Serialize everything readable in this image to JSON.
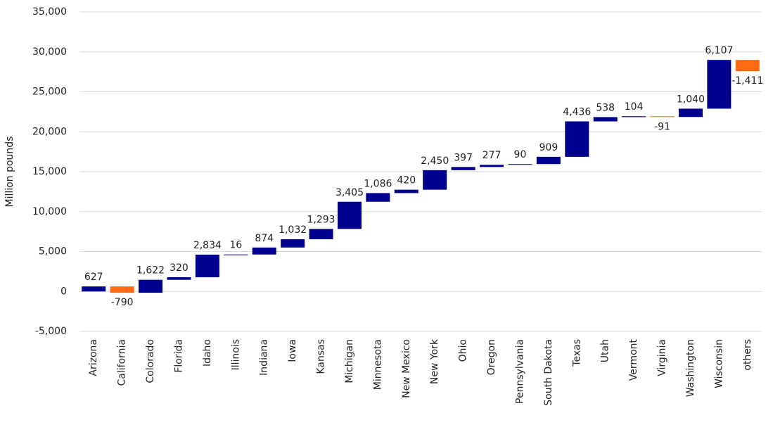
{
  "chart_data": {
    "type": "waterfall",
    "y_label": "Million pounds",
    "categories": [
      "Arizona",
      "California",
      "Colorado",
      "Florida",
      "Idaho",
      "Illinois",
      "Indiana",
      "Iowa",
      "Kansas",
      "Michigan",
      "Minnesota",
      "New Mexico",
      "New York",
      "Ohio",
      "Oregon",
      "Pennsylvania",
      "South Dakota",
      "Texas",
      "Utah",
      "Vermont",
      "Virginia",
      "Washington",
      "Wisconsin",
      "others"
    ],
    "values": [
      627,
      -790,
      1622,
      320,
      2834,
      16,
      874,
      1032,
      1293,
      3405,
      1086,
      420,
      2450,
      397,
      277,
      90,
      909,
      4436,
      538,
      104,
      -91,
      1040,
      6107,
      -1411
    ],
    "value_labels": [
      "627",
      "-790",
      "1,622",
      "320",
      "2,834",
      "16",
      "874",
      "1,032",
      "1,293",
      "3,405",
      "1,086",
      "420",
      "2,450",
      "397",
      "277",
      "90",
      "909",
      "4,436",
      "538",
      "104",
      "-91",
      "1,040",
      "6,107",
      "-1,411"
    ],
    "increase_color": "#00008f",
    "decrease_color": "#ff6a13",
    "ylim": [
      -5000,
      35000
    ],
    "yticks": [
      {
        "value": -5000,
        "label": "-5,000"
      },
      0,
      {
        "value": 5000,
        "label": "5,000"
      },
      {
        "value": 10000,
        "label": "10,000"
      },
      {
        "value": 15000,
        "label": "15,000"
      },
      {
        "value": 20000,
        "label": "20,000"
      },
      {
        "value": 25000,
        "label": "25,000"
      },
      {
        "value": 30000,
        "label": "30,000"
      },
      {
        "value": 35000,
        "label": "35,000"
      }
    ],
    "grid": true
  }
}
